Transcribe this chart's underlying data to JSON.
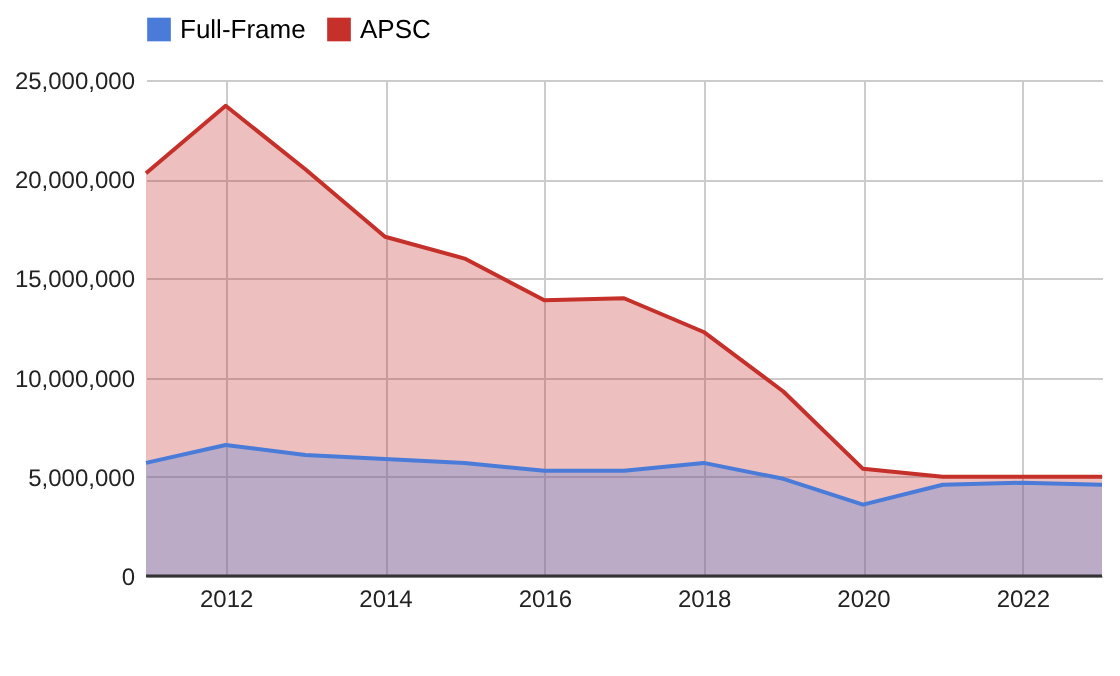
{
  "chart_data": {
    "type": "area",
    "x": [
      2011,
      2012,
      2013,
      2014,
      2015,
      2016,
      2017,
      2018,
      2019,
      2020,
      2021,
      2022,
      2023
    ],
    "series": [
      {
        "name": "Full-Frame",
        "color": "#4a7bd8",
        "values": [
          5700000,
          6600000,
          6100000,
          5900000,
          5700000,
          5300000,
          5300000,
          5700000,
          4900000,
          3600000,
          4600000,
          4700000,
          4600000
        ]
      },
      {
        "name": "APSC",
        "color": "#c5302a",
        "values": [
          20300000,
          23700000,
          20500000,
          17100000,
          16000000,
          13900000,
          14000000,
          12300000,
          9300000,
          5400000,
          5000000,
          5000000,
          5000000
        ]
      }
    ],
    "xlim": [
      2011,
      2023
    ],
    "xticks": [
      2012,
      2014,
      2016,
      2018,
      2020,
      2022
    ],
    "ylim": [
      0,
      25000000
    ],
    "yticks": [
      0,
      {
        "value": 5000000,
        "label": "5,000,000"
      },
      {
        "value": 10000000,
        "label": "10,000,000"
      },
      {
        "value": 15000000,
        "label": "15,000,000"
      },
      {
        "value": 20000000,
        "label": "20,000,000"
      },
      {
        "value": 25000000,
        "label": "25,000,000"
      }
    ],
    "grid": true,
    "legend": "top"
  }
}
